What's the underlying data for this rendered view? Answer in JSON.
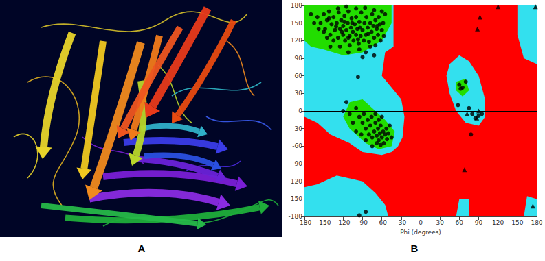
{
  "figure": {
    "panel_labels": [
      "A",
      "B"
    ]
  },
  "chart_data": {
    "type": "scatter",
    "x_label": "Phi (degrees)",
    "xlim": [
      -180,
      180
    ],
    "xticks": [
      -180,
      -150,
      -120,
      -90,
      -60,
      -30,
      0,
      30,
      60,
      90,
      120,
      150,
      180
    ],
    "ylim": [
      -180,
      180
    ],
    "yticks": [
      -180,
      -150,
      -120,
      -90,
      -60,
      -30,
      0,
      30,
      60,
      90,
      120,
      150,
      180
    ],
    "grid": false,
    "reference_lines": {
      "x": [
        0
      ],
      "y": [
        0
      ]
    },
    "regions": [
      {
        "color": "#ff0000",
        "points": [
          [
            -180,
            -180
          ],
          [
            180,
            -180
          ],
          [
            180,
            180
          ],
          [
            -180,
            180
          ]
        ]
      },
      {
        "color": "#33e0ee",
        "points": [
          [
            -180,
            180
          ],
          [
            -42,
            180
          ],
          [
            -42,
            110
          ],
          [
            -55,
            100
          ],
          [
            -60,
            60
          ],
          [
            -45,
            40
          ],
          [
            -30,
            20
          ],
          [
            -25,
            -10
          ],
          [
            -28,
            -45
          ],
          [
            -35,
            -60
          ],
          [
            -45,
            -70
          ],
          [
            -60,
            -75
          ],
          [
            -90,
            -70
          ],
          [
            -110,
            -55
          ],
          [
            -140,
            -40
          ],
          [
            -160,
            -20
          ],
          [
            -180,
            -10
          ]
        ]
      },
      {
        "color": "#33e0ee",
        "points": [
          [
            -180,
            -180
          ],
          [
            -50,
            -180
          ],
          [
            -55,
            -160
          ],
          [
            -70,
            -140
          ],
          [
            -90,
            -120
          ],
          [
            -130,
            -110
          ],
          [
            -160,
            -125
          ],
          [
            -180,
            -130
          ]
        ]
      },
      {
        "color": "#33e0ee",
        "points": [
          [
            45,
            80
          ],
          [
            60,
            95
          ],
          [
            75,
            85
          ],
          [
            90,
            60
          ],
          [
            100,
            20
          ],
          [
            100,
            -10
          ],
          [
            90,
            -25
          ],
          [
            70,
            -20
          ],
          [
            55,
            0
          ],
          [
            45,
            30
          ],
          [
            40,
            60
          ]
        ]
      },
      {
        "color": "#33e0ee",
        "points": [
          [
            150,
            180
          ],
          [
            180,
            180
          ],
          [
            180,
            80
          ],
          [
            160,
            90
          ],
          [
            150,
            130
          ]
        ]
      },
      {
        "color": "#33e0ee",
        "points": [
          [
            160,
            -180
          ],
          [
            180,
            -180
          ],
          [
            180,
            -150
          ],
          [
            165,
            -145
          ]
        ]
      },
      {
        "color": "#33e0ee",
        "points": [
          [
            55,
            -180
          ],
          [
            75,
            -180
          ],
          [
            75,
            -150
          ],
          [
            60,
            -150
          ]
        ]
      },
      {
        "color": "#22dd00",
        "points": [
          [
            -180,
            180
          ],
          [
            -45,
            180
          ],
          [
            -45,
            150
          ],
          [
            -60,
            120
          ],
          [
            -90,
            100
          ],
          [
            -120,
            95
          ],
          [
            -150,
            105
          ],
          [
            -170,
            110
          ],
          [
            -180,
            120
          ]
        ]
      },
      {
        "color": "#22dd00",
        "points": [
          [
            -110,
            15
          ],
          [
            -90,
            20
          ],
          [
            -75,
            5
          ],
          [
            -55,
            -15
          ],
          [
            -40,
            -35
          ],
          [
            -45,
            -60
          ],
          [
            -65,
            -65
          ],
          [
            -85,
            -55
          ],
          [
            -110,
            -30
          ],
          [
            -120,
            -10
          ]
        ]
      },
      {
        "color": "#22dd00",
        "points": [
          [
            55,
            50
          ],
          [
            70,
            55
          ],
          [
            75,
            35
          ],
          [
            65,
            25
          ],
          [
            55,
            35
          ]
        ]
      }
    ],
    "series": [
      {
        "marker": "circle",
        "color": "#000000",
        "values": [
          [
            -160,
            160
          ],
          [
            -155,
            150
          ],
          [
            -150,
            165
          ],
          [
            -148,
            140
          ],
          [
            -145,
            155
          ],
          [
            -142,
            170
          ],
          [
            -140,
            130
          ],
          [
            -138,
            148
          ],
          [
            -135,
            160
          ],
          [
            -133,
            138
          ],
          [
            -130,
            150
          ],
          [
            -128,
            125
          ],
          [
            -127,
            168
          ],
          [
            -125,
            140
          ],
          [
            -123,
            155
          ],
          [
            -120,
            130
          ],
          [
            -120,
            145
          ],
          [
            -118,
            162
          ],
          [
            -117,
            120
          ],
          [
            -115,
            138
          ],
          [
            -113,
            150
          ],
          [
            -112,
            170
          ],
          [
            -110,
            128
          ],
          [
            -108,
            142
          ],
          [
            -107,
            158
          ],
          [
            -105,
            135
          ],
          [
            -104,
            120
          ],
          [
            -102,
            148
          ],
          [
            -100,
            160
          ],
          [
            -100,
            130
          ],
          [
            -98,
            140
          ],
          [
            -96,
            115
          ],
          [
            -95,
            152
          ],
          [
            -93,
            128
          ],
          [
            -92,
            168
          ],
          [
            -90,
            138
          ],
          [
            -88,
            120
          ],
          [
            -87,
            150
          ],
          [
            -85,
            130
          ],
          [
            -84,
            160
          ],
          [
            -82,
            142
          ],
          [
            -80,
            118
          ],
          [
            -78,
            150
          ],
          [
            -76,
            135
          ],
          [
            -75,
            165
          ],
          [
            -73,
            145
          ],
          [
            -72,
            125
          ],
          [
            -70,
            155
          ],
          [
            -68,
            140
          ],
          [
            -66,
            130
          ],
          [
            -65,
            160
          ],
          [
            -63,
            148
          ],
          [
            -62,
            120
          ],
          [
            -60,
            138
          ],
          [
            -58,
            150
          ],
          [
            -57,
            128
          ],
          [
            -55,
            165
          ],
          [
            -135,
            120
          ],
          [
            -145,
            125
          ],
          [
            -150,
            135
          ],
          [
            -158,
            140
          ],
          [
            -165,
            150
          ],
          [
            -170,
            165
          ],
          [
            -140,
            110
          ],
          [
            -125,
            110
          ],
          [
            -110,
            112
          ],
          [
            -95,
            105
          ],
          [
            -85,
            100
          ],
          [
            -78,
            110
          ],
          [
            -70,
            112
          ],
          [
            -128,
            175
          ],
          [
            -115,
            178
          ],
          [
            -100,
            175
          ],
          [
            -86,
            176
          ],
          [
            -72,
            172
          ],
          [
            -60,
            170
          ],
          [
            -142,
            158
          ],
          [
            -118,
            152
          ],
          [
            -106,
            150
          ],
          [
            -94,
            142
          ],
          [
            -81,
            132
          ],
          [
            -67,
            145
          ],
          [
            -131,
            144
          ],
          [
            -122,
            135
          ],
          [
            -112,
            125
          ],
          [
            -97,
            122
          ],
          [
            -90,
            92
          ],
          [
            -97,
            58
          ],
          [
            -72,
            95
          ],
          [
            -112,
            100
          ],
          [
            -100,
            5
          ],
          [
            -95,
            -10
          ],
          [
            -90,
            -20
          ],
          [
            -88,
            -5
          ],
          [
            -85,
            -30
          ],
          [
            -82,
            -15
          ],
          [
            -80,
            -40
          ],
          [
            -78,
            -25
          ],
          [
            -76,
            -10
          ],
          [
            -75,
            -45
          ],
          [
            -72,
            -35
          ],
          [
            -70,
            -20
          ],
          [
            -68,
            -42
          ],
          [
            -66,
            -30
          ],
          [
            -65,
            -50
          ],
          [
            -63,
            -38
          ],
          [
            -62,
            -25
          ],
          [
            -60,
            -45
          ],
          [
            -58,
            -35
          ],
          [
            -57,
            -55
          ],
          [
            -55,
            -40
          ],
          [
            -53,
            -30
          ],
          [
            -52,
            -48
          ],
          [
            -50,
            -38
          ],
          [
            -65,
            -15
          ],
          [
            -70,
            -5
          ],
          [
            -60,
            -10
          ],
          [
            -105,
            -20
          ],
          [
            -110,
            -5
          ],
          [
            -92,
            -40
          ],
          [
            -85,
            -50
          ],
          [
            -75,
            -60
          ],
          [
            -68,
            -55
          ],
          [
            -62,
            -58
          ],
          [
            -115,
            15
          ],
          [
            -120,
            0
          ],
          [
            -100,
            -35
          ],
          [
            -45,
            -45
          ],
          [
            -48,
            -25
          ],
          [
            -95,
            -178
          ],
          [
            -85,
            -172
          ],
          [
            60,
            45
          ],
          [
            65,
            40
          ],
          [
            70,
            50
          ],
          [
            62,
            38
          ],
          [
            58,
            10
          ],
          [
            75,
            5
          ],
          [
            80,
            -5
          ],
          [
            85,
            -12
          ],
          [
            90,
            -8
          ],
          [
            78,
            -40
          ],
          [
            95,
            -5
          ]
        ]
      },
      {
        "marker": "triangle",
        "color": "#000000",
        "values": [
          [
            120,
            178
          ],
          [
            178,
            178
          ],
          [
            92,
            160
          ],
          [
            88,
            140
          ],
          [
            72,
            -5
          ],
          [
            90,
            0
          ],
          [
            87,
            -12
          ],
          [
            68,
            -100
          ],
          [
            174,
            -162
          ]
        ]
      }
    ]
  }
}
